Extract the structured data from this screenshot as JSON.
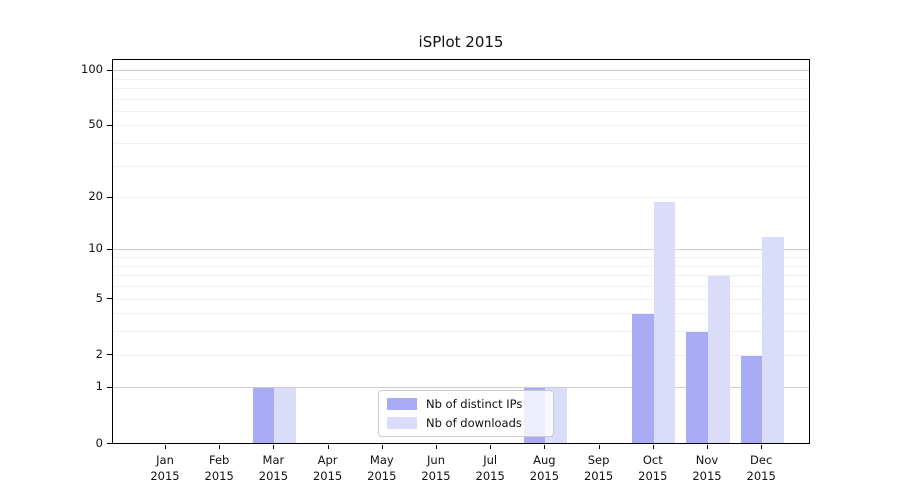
{
  "title": "iSPlot 2015",
  "chart_data": {
    "type": "bar",
    "title": "iSPlot 2015",
    "categories": [
      "Jan",
      "Feb",
      "Mar",
      "Apr",
      "May",
      "Jun",
      "Jul",
      "Aug",
      "Sep",
      "Oct",
      "Nov",
      "Dec"
    ],
    "category_year": "2015",
    "series": [
      {
        "name": "Nb of distinct IPs",
        "color": "#aaabf5",
        "values": [
          0,
          0,
          1,
          0,
          0,
          0,
          0,
          1,
          0,
          4,
          3,
          2
        ]
      },
      {
        "name": "Nb of downloads",
        "color": "#dadcf9",
        "values": [
          0,
          0,
          1,
          0,
          0,
          0,
          0,
          1,
          0,
          19,
          7,
          12
        ]
      }
    ],
    "xlabel": "",
    "ylabel": "",
    "y_scale": "log10(1+y)",
    "ylim": [
      0,
      115
    ],
    "y_ticks": [
      0,
      1,
      2,
      5,
      10,
      20,
      50,
      100
    ],
    "y_major_gridlines": [
      1,
      10,
      100
    ],
    "y_minor_gridlines": [
      2,
      3,
      4,
      5,
      6,
      7,
      8,
      9,
      20,
      30,
      40,
      50,
      60,
      70,
      80,
      90
    ],
    "grid": "on",
    "legend_position": "lower center",
    "colors": {
      "major_grid": "#cccccc",
      "minor_grid": "#f0f0f0",
      "spine": "#000000",
      "text": "#111111",
      "background": "#ffffff"
    }
  }
}
